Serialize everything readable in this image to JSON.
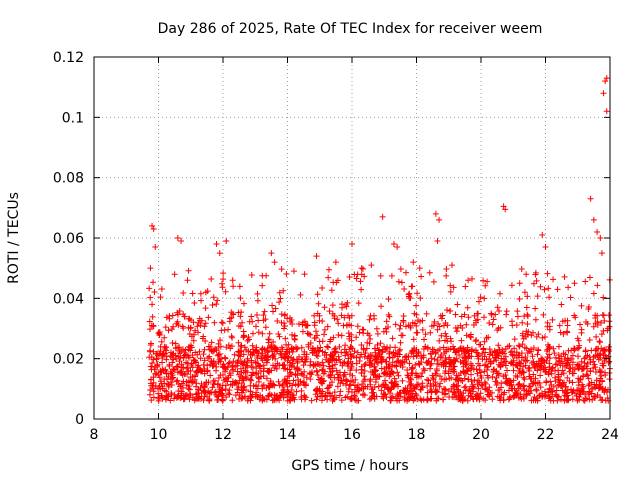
{
  "chart_data": {
    "type": "scatter",
    "title": "Day 286 of 2025, Rate Of TEC Index for receiver weem",
    "xlabel": "GPS time / hours",
    "ylabel": "ROTI / TECUs",
    "xlim": [
      8,
      24
    ],
    "ylim": [
      0,
      0.12
    ],
    "x_ticks": [
      8,
      10,
      12,
      14,
      16,
      18,
      20,
      22,
      24
    ],
    "x_tick_labels": [
      "8",
      "10",
      "12",
      "14",
      "16",
      "18",
      "20",
      "22",
      "24"
    ],
    "y_ticks": [
      0,
      0.02,
      0.04,
      0.06,
      0.08,
      0.1,
      0.12
    ],
    "y_tick_labels": [
      "0",
      "0.02",
      "0.04",
      "0.06",
      "0.08",
      "0.1",
      "0.12"
    ],
    "grid": true,
    "marker": "+",
    "color": "#ff0000",
    "series": [
      {
        "name": "ROTI",
        "data_range_hours": [
          9.7,
          24.0
        ],
        "points": [
          [
            9.8,
            0.064
          ],
          [
            9.85,
            0.063
          ],
          [
            9.9,
            0.057
          ],
          [
            9.75,
            0.05
          ],
          [
            9.8,
            0.038
          ],
          [
            10.6,
            0.06
          ],
          [
            10.7,
            0.059
          ],
          [
            10.5,
            0.048
          ],
          [
            10.9,
            0.046
          ],
          [
            11.8,
            0.058
          ],
          [
            11.9,
            0.055
          ],
          [
            12.1,
            0.059
          ],
          [
            12.3,
            0.046
          ],
          [
            13.5,
            0.055
          ],
          [
            13.6,
            0.052
          ],
          [
            14.2,
            0.049
          ],
          [
            14.9,
            0.054
          ],
          [
            15.5,
            0.052
          ],
          [
            16.0,
            0.058
          ],
          [
            16.3,
            0.05
          ],
          [
            16.6,
            0.051
          ],
          [
            16.95,
            0.067
          ],
          [
            17.3,
            0.058
          ],
          [
            17.4,
            0.057
          ],
          [
            17.9,
            0.052
          ],
          [
            18.1,
            0.05
          ],
          [
            18.6,
            0.068
          ],
          [
            18.7,
            0.066
          ],
          [
            18.65,
            0.059
          ],
          [
            19.1,
            0.051
          ],
          [
            19.6,
            0.046
          ],
          [
            20.1,
            0.04
          ],
          [
            20.7,
            0.0705
          ],
          [
            20.75,
            0.0695
          ],
          [
            21.2,
            0.045
          ],
          [
            21.4,
            0.048
          ],
          [
            21.9,
            0.061
          ],
          [
            22.0,
            0.057
          ],
          [
            22.9,
            0.045
          ],
          [
            23.4,
            0.073
          ],
          [
            23.5,
            0.066
          ],
          [
            23.6,
            0.062
          ],
          [
            23.8,
            0.108
          ],
          [
            23.85,
            0.112
          ],
          [
            23.9,
            0.102
          ],
          [
            23.9,
            0.113
          ],
          [
            23.7,
            0.06
          ],
          [
            23.75,
            0.055
          ]
        ]
      }
    ]
  }
}
